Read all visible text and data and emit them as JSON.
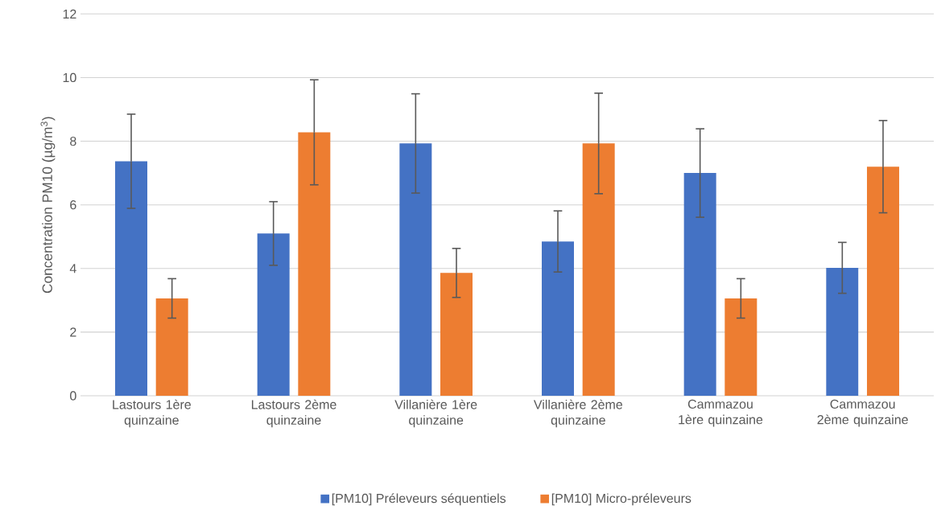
{
  "chart_data": {
    "type": "bar",
    "ylabel": "Concentration PM10 (µg/m$^{3}$)",
    "categories": [
      "Lastours 1ère quinzaine",
      "Lastours 2ème quinzaine",
      "Villanière 1ère quinzaine",
      "Villanière 2ème quinzaine",
      "Cammazou 1ère quinzaine",
      "Cammazou 2ème quinzaine"
    ],
    "series": [
      {
        "name": "[PM10] Préleveurs séquentiels",
        "color": "#4472c4",
        "values": [
          7.37,
          5.1,
          7.93,
          4.85,
          7.0,
          4.02
        ],
        "errors": [
          1.48,
          1.0,
          1.56,
          0.96,
          1.39,
          0.8
        ]
      },
      {
        "name": "[PM10] Micro-préleveurs",
        "color": "#ed7d31",
        "values": [
          3.06,
          8.28,
          3.86,
          7.93,
          3.06,
          7.2
        ],
        "errors": [
          0.62,
          1.65,
          0.77,
          1.58,
          0.62,
          1.45
        ]
      }
    ],
    "ylim": [
      0,
      12
    ],
    "yticks": [
      0,
      2,
      4,
      6,
      8,
      10,
      12
    ],
    "grid": "y",
    "legend": "bottom"
  }
}
